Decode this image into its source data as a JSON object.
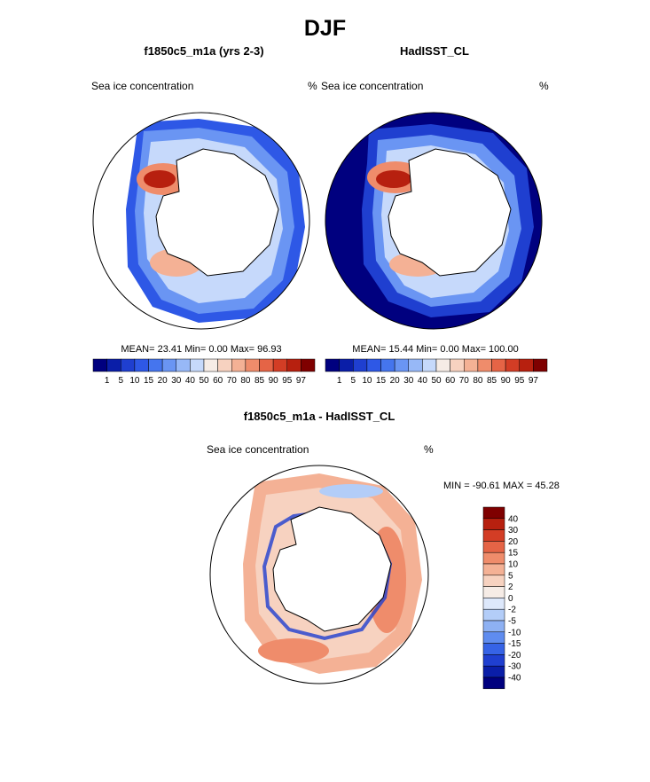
{
  "figure": {
    "title": "DJF",
    "left": {
      "title": "f1850c5_m1a (yrs 2-3)",
      "variable": "Sea ice concentration",
      "units": "%",
      "stats": "MEAN= 23.41  Min=  0.00  Max= 96.93"
    },
    "right": {
      "title": "HadISST_CL",
      "variable": "Sea ice concentration",
      "units": "%",
      "stats": "MEAN= 15.44  Min=  0.00  Max= 100.00"
    },
    "diff": {
      "title": "f1850c5_m1a - HadISST_CL",
      "variable": "Sea ice concentration",
      "units": "%",
      "stats": "MIN = -90.61 MAX =  45.28"
    }
  },
  "chart_data": [
    {
      "type": "heatmap",
      "name": "left",
      "projection": "south polar stereographic",
      "mean": 23.41,
      "min": 0.0,
      "max": 96.93,
      "colorbar": {
        "orientation": "horizontal",
        "levels": [
          "1",
          "5",
          "10",
          "15",
          "20",
          "30",
          "40",
          "50",
          "60",
          "70",
          "80",
          "85",
          "90",
          "95",
          "97"
        ],
        "colors": [
          "#00007f",
          "#0a1ea8",
          "#1f3fd0",
          "#2e58e6",
          "#4575ee",
          "#6a95f3",
          "#97b8f7",
          "#c6d9fb",
          "#f6ece6",
          "#f7d2c0",
          "#f4b195",
          "#ef8c6b",
          "#e56446",
          "#d33d25",
          "#b7200f",
          "#7f0000"
        ]
      }
    },
    {
      "type": "heatmap",
      "name": "right",
      "projection": "south polar stereographic",
      "mean": 15.44,
      "min": 0.0,
      "max": 100.0,
      "colorbar": {
        "orientation": "horizontal",
        "levels": [
          "1",
          "5",
          "10",
          "15",
          "20",
          "30",
          "40",
          "50",
          "60",
          "70",
          "80",
          "85",
          "90",
          "95",
          "97"
        ],
        "colors": [
          "#00007f",
          "#0a1ea8",
          "#1f3fd0",
          "#2e58e6",
          "#4575ee",
          "#6a95f3",
          "#97b8f7",
          "#c6d9fb",
          "#f6ece6",
          "#f7d2c0",
          "#f4b195",
          "#ef8c6b",
          "#e56446",
          "#d33d25",
          "#b7200f",
          "#7f0000"
        ]
      }
    },
    {
      "type": "heatmap",
      "name": "difference",
      "projection": "south polar stereographic",
      "min": -90.61,
      "max": 45.28,
      "colorbar": {
        "orientation": "vertical",
        "levels": [
          "40",
          "30",
          "20",
          "15",
          "10",
          "5",
          "2",
          "0",
          "-2",
          "-5",
          "-10",
          "-15",
          "-20",
          "-30",
          "-40"
        ],
        "colors": [
          "#7f0000",
          "#b7200f",
          "#d33d25",
          "#e56446",
          "#ef8c6b",
          "#f4b195",
          "#f7d2c0",
          "#f6ece6",
          "#dde8fb",
          "#b3cdf8",
          "#8eb1f3",
          "#5f8cef",
          "#3663e6",
          "#1f3fd0",
          "#0a1ea8",
          "#00007f"
        ]
      }
    }
  ]
}
